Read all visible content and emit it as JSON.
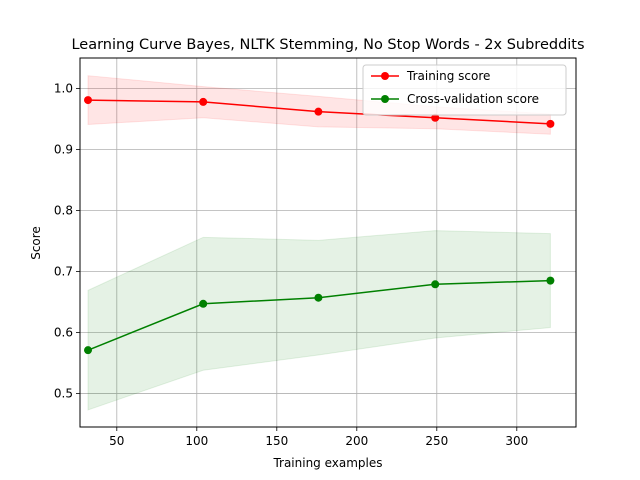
{
  "chart_data": {
    "type": "line",
    "title": "Learning Curve  Bayes, NLTK Stemming, No Stop Words - 2x Subreddits",
    "xlabel": "Training examples",
    "ylabel": "Score",
    "xlim": [
      27,
      337
    ],
    "ylim": [
      0.445,
      1.05
    ],
    "xticks": [
      50,
      100,
      150,
      200,
      250,
      300
    ],
    "yticks": [
      0.5,
      0.6,
      0.7,
      0.8,
      0.9,
      1.0
    ],
    "xtick_labels": [
      "50",
      "100",
      "150",
      "200",
      "250",
      "300"
    ],
    "ytick_labels": [
      "0.5",
      "0.6",
      "0.7",
      "0.8",
      "0.9",
      "1.0"
    ],
    "grid": true,
    "legend_position": "top-right",
    "x": [
      32,
      104,
      176,
      249,
      321
    ],
    "series": [
      {
        "name": "Training score",
        "color": "#ff0000",
        "values": [
          0.981,
          0.978,
          0.962,
          0.952,
          0.942
        ],
        "band_lower": [
          0.941,
          0.952,
          0.937,
          0.934,
          0.925
        ],
        "band_upper": [
          1.021,
          1.003,
          0.987,
          0.97,
          0.958
        ]
      },
      {
        "name": "Cross-validation score",
        "color": "#008000",
        "values": [
          0.571,
          0.647,
          0.657,
          0.679,
          0.685
        ],
        "band_lower": [
          0.473,
          0.538,
          0.563,
          0.591,
          0.608
        ],
        "band_upper": [
          0.669,
          0.756,
          0.751,
          0.767,
          0.762
        ]
      }
    ]
  }
}
